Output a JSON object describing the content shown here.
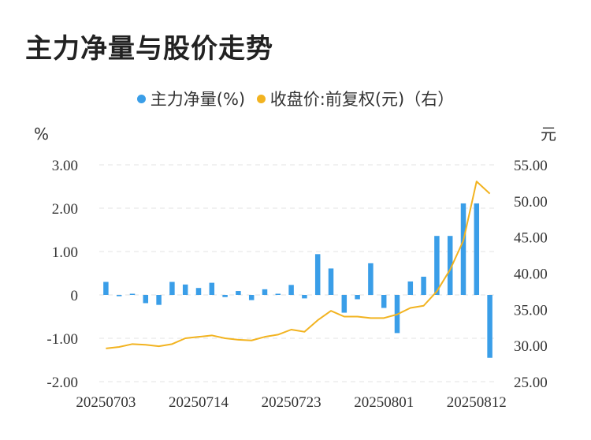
{
  "title": "主力净量与股价走势",
  "legend": {
    "bar_label": "主力净量(%)",
    "line_label": "收盘价:前复权(元)（右）"
  },
  "colors": {
    "bar": "#3a9ee8",
    "line": "#f2b320",
    "grid": "#e3e3e3"
  },
  "chart_data": {
    "type": "bar",
    "title": "主力净量与股价走势",
    "left_unit": "%",
    "right_unit": "元",
    "left_ylim": [
      -2,
      3
    ],
    "right_ylim": [
      25,
      55
    ],
    "left_ticks": [
      "3.00",
      "2.00",
      "1.00",
      "0",
      "-1.00",
      "-2.00"
    ],
    "right_ticks": [
      "55.00",
      "50.00",
      "45.00",
      "40.00",
      "35.00",
      "30.00",
      "25.00"
    ],
    "x_tick_labels": [
      "20250703",
      "20250714",
      "20250723",
      "20250801",
      "20250812"
    ],
    "x_tick_index": [
      0,
      7,
      14,
      21,
      28
    ],
    "grid": true,
    "legend_position": "top",
    "series": [
      {
        "name": "主力净量(%)",
        "type": "bar",
        "axis": "left",
        "values": [
          0.3,
          -0.03,
          0.01,
          -0.19,
          -0.23,
          0.3,
          0.24,
          0.16,
          0.28,
          -0.05,
          0.09,
          -0.12,
          0.13,
          0.01,
          0.23,
          -0.08,
          0.94,
          0.61,
          -0.41,
          -0.1,
          0.73,
          -0.3,
          -0.88,
          0.31,
          0.42,
          1.36,
          1.36,
          2.11,
          2.11,
          -1.45
        ]
      },
      {
        "name": "收盘价:前复权(元)（右）",
        "type": "line",
        "axis": "right",
        "values": [
          29.6,
          29.8,
          30.2,
          30.1,
          29.9,
          30.2,
          31.0,
          31.2,
          31.4,
          31.0,
          30.8,
          30.7,
          31.2,
          31.5,
          32.2,
          31.9,
          33.5,
          34.8,
          34.0,
          34.0,
          33.8,
          33.8,
          34.3,
          35.2,
          35.5,
          37.5,
          40.5,
          44.5,
          52.7,
          51.0
        ]
      }
    ]
  }
}
